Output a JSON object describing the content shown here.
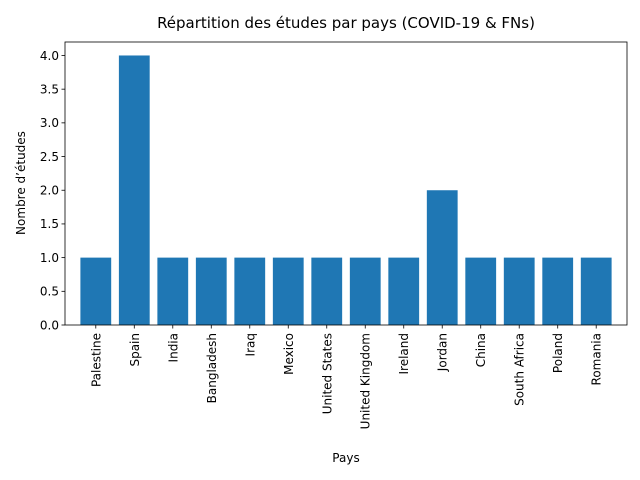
{
  "chart_data": {
    "type": "bar",
    "title": "Répartition des études par pays (COVID-19 & FNs)",
    "xlabel": "Pays",
    "ylabel": "Nombre d’études",
    "categories": [
      "Palestine",
      "Spain",
      "India",
      "Bangladesh",
      "Iraq",
      "Mexico",
      "United States",
      "United Kingdom",
      "Ireland",
      "Jordan",
      "China",
      "South Africa",
      "Poland",
      "Romania"
    ],
    "values": [
      1,
      4,
      1,
      1,
      1,
      1,
      1,
      1,
      1,
      2,
      1,
      1,
      1,
      1
    ],
    "ylim": [
      0,
      4.2
    ],
    "yticks": [
      "0.0",
      "0.5",
      "1.0",
      "1.5",
      "2.0",
      "2.5",
      "3.0",
      "3.5",
      "4.0"
    ],
    "grid": false,
    "bar_color": "#1f77b4"
  }
}
